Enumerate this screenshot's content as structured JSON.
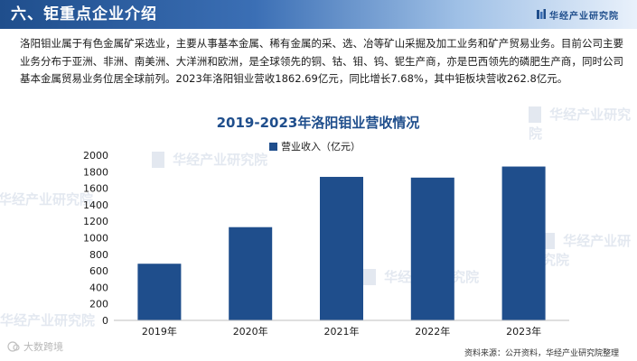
{
  "header": {
    "section_title": "六、钜重点企业介绍",
    "brand": "华经产业研究院"
  },
  "intro": "洛阳钼业属于有色金属矿采选业，主要从事基本金属、稀有金属的采、选、冶等矿山采掘及加工业务和矿产贸易业务。目前公司主要业务分布于亚洲、非洲、南美洲、大洋洲和欧洲，是全球领先的铜、钴、钼、钨、铌生产商，亦是巴西领先的磷肥生产商，同时公司基本金属贸易业务位居全球前列。2023年洛阳钼业营收1862.69亿元，同比增长7.68%，其中钜板块营收262.8亿元。",
  "watermark": "华经产业研究院",
  "bottom_mark": "大数跨境",
  "source": "资料来源：公开资料，华经产业研究院整理",
  "colors": {
    "bar": "#1f4e8c",
    "title": "#1f4e8c",
    "header": "#1f4e8c"
  },
  "chart_data": {
    "type": "bar",
    "title": "2019-2023年洛阳钼业营收情况",
    "categories": [
      "2019年",
      "2020年",
      "2021年",
      "2022年",
      "2023年"
    ],
    "series": [
      {
        "name": "营业收入（亿元）",
        "values": [
          686,
          1129,
          1738,
          1729,
          1863
        ]
      }
    ],
    "yticks": [
      0,
      200,
      400,
      600,
      800,
      1000,
      1200,
      1400,
      1600,
      1800,
      2000
    ],
    "ylim": [
      0,
      2000
    ],
    "legend": "top-center",
    "grid": false
  }
}
